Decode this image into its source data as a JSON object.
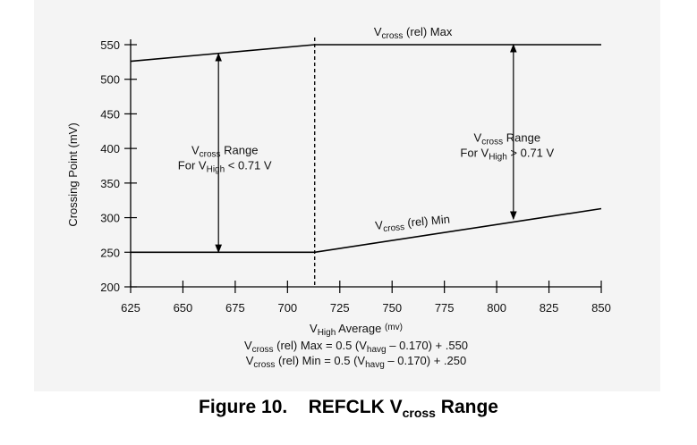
{
  "chart_data": {
    "type": "line",
    "xlabel": {
      "v": "V",
      "sub": "High",
      "rest": " Average ",
      "unit": "(mv)"
    },
    "ylabel": "Crossing Point (mV)",
    "xlim": [
      625,
      850
    ],
    "ylim": [
      200,
      550
    ],
    "xticks": [
      625,
      650,
      675,
      700,
      725,
      750,
      775,
      800,
      825,
      850
    ],
    "yticks": [
      200,
      250,
      300,
      350,
      400,
      450,
      500,
      550
    ],
    "divider_x": 713,
    "series": [
      {
        "name": "Max",
        "points": [
          [
            625,
            526
          ],
          [
            713,
            550
          ],
          [
            850,
            550
          ]
        ]
      },
      {
        "name": "Min",
        "points": [
          [
            625,
            250
          ],
          [
            713,
            250
          ],
          [
            850,
            313
          ]
        ]
      }
    ],
    "annotations": {
      "max_label": {
        "v": "V",
        "sub": "cross",
        "rest": " (rel) Max",
        "x": 760,
        "y": 550
      },
      "min_label": {
        "v": "V",
        "sub": "cross",
        "rest": " (rel) Min",
        "x": 760,
        "y": 285
      },
      "left_range": {
        "line1": {
          "v": "V",
          "sub": "cross",
          "rest": " Range"
        },
        "line2": {
          "v": "For V",
          "sub": "High",
          "rest": " < 0.71 V"
        },
        "arrow_x": 667,
        "arrow_from": 250,
        "arrow_to": 537
      },
      "right_range": {
        "line1": {
          "v": "V",
          "sub": "cross",
          "rest": " Range"
        },
        "line2": {
          "v": "For V",
          "sub": "High",
          "rest": " > 0.71 V"
        },
        "arrow_x": 808,
        "arrow_from": 298,
        "arrow_to": 550
      }
    },
    "formulas": [
      {
        "v": "V",
        "sub": "cross",
        "mid": " (rel) Max = 0.5 (V",
        "sub2": "havg",
        "rest": " – 0.170) + .550"
      },
      {
        "v": "V",
        "sub": "cross",
        "mid": " (rel) Min = 0.5 (V",
        "sub2": "havg",
        "rest": " – 0.170) + .250"
      }
    ]
  },
  "caption": {
    "prefix": "Figure 10.",
    "title": "REFCLK V",
    "sub": "cross",
    "suffix": " Range"
  }
}
